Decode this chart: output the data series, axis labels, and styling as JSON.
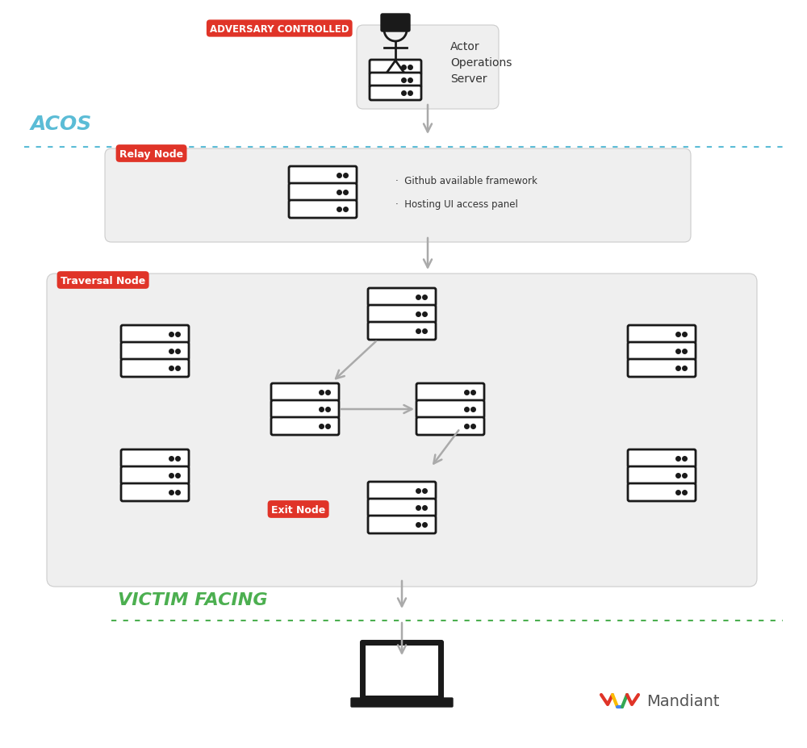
{
  "bg_color": "#ffffff",
  "acos_label": "ACOS",
  "acos_color": "#5bbcd6",
  "victim_label": "VICTIM FACING",
  "victim_color": "#4caf50",
  "adversary_label": "ADVERSARY CONTROLLED",
  "relay_label": "Relay Node",
  "traversal_label": "Traversal Node",
  "exit_label": "Exit Node",
  "label_bg": "#e03428",
  "label_fg": "#ffffff",
  "box_bg": "#efefef",
  "box_border": "#cccccc",
  "server_label": "Actor\nOperations\nServer",
  "relay_notes": [
    "Github available framework",
    "Hosting UI access panel"
  ],
  "arrow_color": "#aaaaaa",
  "server_edge": "#1a1a1a",
  "server_fill": "#ffffff"
}
